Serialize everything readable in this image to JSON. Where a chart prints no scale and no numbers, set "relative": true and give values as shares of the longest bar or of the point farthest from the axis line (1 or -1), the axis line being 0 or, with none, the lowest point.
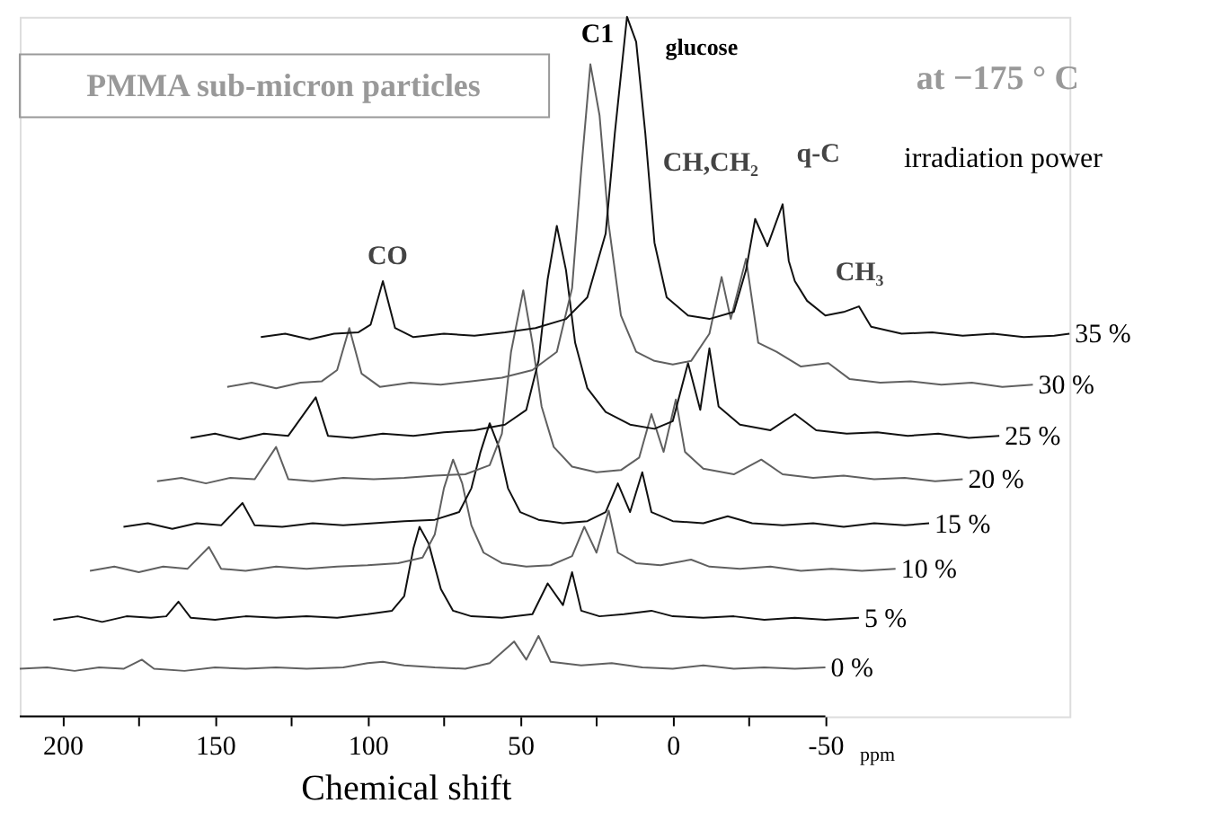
{
  "chart_data": {
    "type": "line",
    "relative": true,
    "title": "PMMA sub-micron particles",
    "xlabel": "Chemical shift",
    "xlim": [
      214,
      -130
    ],
    "xticks": [
      200,
      {
        "value": 175,
        "label": null
      },
      150,
      {
        "value": 125,
        "label": null
      },
      100,
      {
        "value": 75,
        "label": null
      },
      50,
      {
        "value": 25,
        "label": null
      },
      0,
      {
        "value": -25,
        "label": null
      },
      -50
    ],
    "legend": false,
    "grid": false,
    "line_style": "solid",
    "annotations": [
      "CO",
      "C1",
      "glucose",
      "CH,CH₂",
      "q-C",
      "CH₃",
      "at −175 ° C",
      "irradiation power",
      "ppm"
    ],
    "series": [
      {
        "name": "0 %",
        "color": "#606060",
        "x": [
          214,
          205,
          196,
          188,
          180,
          174,
          170,
          160,
          150,
          140,
          130,
          120,
          108,
          100,
          95,
          88,
          78,
          68,
          60,
          52,
          48,
          44,
          40,
          30,
          20,
          10,
          0,
          -10,
          -20,
          -30,
          -40,
          -50
        ],
        "values": [
          0.068,
          0.07,
          0.065,
          0.07,
          0.068,
          0.081,
          0.068,
          0.065,
          0.07,
          0.068,
          0.07,
          0.068,
          0.07,
          0.076,
          0.078,
          0.073,
          0.07,
          0.068,
          0.076,
          0.107,
          0.081,
          0.115,
          0.078,
          0.073,
          0.076,
          0.07,
          0.068,
          0.073,
          0.068,
          0.07,
          0.068,
          0.07
        ]
      },
      {
        "name": "5 %",
        "color": "#111111",
        "x": [
          203,
          195,
          187,
          179,
          171,
          166,
          162,
          158,
          150,
          140,
          130,
          120,
          110,
          100,
          92,
          88,
          85,
          83,
          80,
          76,
          72,
          66,
          56,
          46,
          41,
          36,
          33,
          30,
          24,
          16,
          7,
          0,
          -10,
          -20,
          -30,
          -40,
          -50,
          -61
        ],
        "values": [
          0.138,
          0.143,
          0.135,
          0.143,
          0.141,
          0.143,
          0.164,
          0.141,
          0.138,
          0.143,
          0.141,
          0.143,
          0.141,
          0.146,
          0.151,
          0.172,
          0.24,
          0.271,
          0.247,
          0.182,
          0.151,
          0.143,
          0.141,
          0.146,
          0.19,
          0.159,
          0.206,
          0.151,
          0.143,
          0.146,
          0.151,
          0.143,
          0.141,
          0.143,
          0.138,
          0.141,
          0.138,
          0.141
        ]
      },
      {
        "name": "10 %",
        "color": "#606060",
        "x": [
          191,
          183,
          175,
          167,
          159,
          152,
          148,
          140,
          130,
          120,
          110,
          100,
          90,
          82,
          78,
          75,
          72,
          69,
          66,
          62,
          56,
          48,
          40,
          33,
          29,
          25,
          21,
          18,
          12,
          4,
          -6,
          -12,
          -22,
          -32,
          -42,
          -52,
          -62,
          -73
        ],
        "values": [
          0.208,
          0.214,
          0.206,
          0.214,
          0.211,
          0.242,
          0.211,
          0.208,
          0.214,
          0.211,
          0.214,
          0.216,
          0.219,
          0.227,
          0.26,
          0.326,
          0.367,
          0.333,
          0.273,
          0.234,
          0.219,
          0.214,
          0.216,
          0.229,
          0.271,
          0.234,
          0.294,
          0.234,
          0.219,
          0.216,
          0.224,
          0.214,
          0.211,
          0.214,
          0.208,
          0.211,
          0.208,
          0.211
        ]
      },
      {
        "name": "15 %",
        "color": "#111111",
        "x": [
          180,
          172,
          164,
          156,
          148,
          141,
          137,
          128,
          118,
          108,
          98,
          88,
          78,
          70,
          66,
          63,
          60,
          57,
          54,
          50,
          44,
          36,
          28,
          22,
          18,
          14,
          10,
          7,
          0,
          -10,
          -18,
          -26,
          -36,
          -46,
          -56,
          -66,
          -76,
          -84
        ],
        "values": [
          0.271,
          0.276,
          0.268,
          0.276,
          0.273,
          0.305,
          0.273,
          0.271,
          0.276,
          0.273,
          0.276,
          0.279,
          0.281,
          0.292,
          0.326,
          0.378,
          0.419,
          0.385,
          0.326,
          0.292,
          0.281,
          0.276,
          0.279,
          0.292,
          0.333,
          0.292,
          0.349,
          0.292,
          0.279,
          0.276,
          0.286,
          0.276,
          0.273,
          0.276,
          0.271,
          0.276,
          0.273,
          0.276
        ]
      },
      {
        "name": "20 %",
        "color": "#606060",
        "x": [
          169,
          161,
          153,
          145,
          137,
          130,
          126,
          118,
          108,
          98,
          88,
          78,
          68,
          60,
          56,
          53,
          49,
          46,
          43,
          39,
          33,
          25,
          17,
          11,
          7,
          3,
          -1,
          -4,
          -10,
          -20,
          -29,
          -36,
          -46,
          -56,
          -66,
          -76,
          -86,
          -95
        ],
        "values": [
          0.336,
          0.341,
          0.333,
          0.341,
          0.339,
          0.385,
          0.339,
          0.336,
          0.341,
          0.339,
          0.341,
          0.344,
          0.346,
          0.359,
          0.404,
          0.521,
          0.609,
          0.534,
          0.443,
          0.385,
          0.357,
          0.349,
          0.352,
          0.37,
          0.432,
          0.378,
          0.453,
          0.378,
          0.354,
          0.346,
          0.367,
          0.346,
          0.341,
          0.344,
          0.339,
          0.341,
          0.336,
          0.339
        ]
      },
      {
        "name": "25 %",
        "color": "#111111",
        "x": [
          158,
          150,
          142,
          134,
          126,
          117,
          113,
          105,
          95,
          85,
          75,
          65,
          55,
          48,
          44,
          41,
          38,
          35,
          32,
          28,
          22,
          14,
          6,
          0,
          -5,
          -9,
          -12,
          -15,
          -22,
          -32,
          -40,
          -47,
          -57,
          -67,
          -77,
          -87,
          -97,
          -107
        ],
        "values": [
          0.398,
          0.404,
          0.396,
          0.404,
          0.401,
          0.456,
          0.401,
          0.398,
          0.404,
          0.401,
          0.406,
          0.409,
          0.417,
          0.438,
          0.508,
          0.625,
          0.701,
          0.638,
          0.534,
          0.469,
          0.435,
          0.417,
          0.411,
          0.422,
          0.505,
          0.438,
          0.526,
          0.443,
          0.417,
          0.409,
          0.432,
          0.409,
          0.404,
          0.406,
          0.401,
          0.404,
          0.398,
          0.401
        ]
      },
      {
        "name": "30 %",
        "color": "#606060",
        "x": [
          146,
          138,
          130,
          122,
          115,
          110,
          106,
          102,
          96,
          86,
          76,
          66,
          56,
          46,
          38,
          33,
          30,
          27,
          24,
          21,
          17,
          12,
          6,
          0,
          -6,
          -12,
          -16,
          -19,
          -24,
          -28,
          -34,
          -42,
          -51,
          -58,
          -68,
          -78,
          -88,
          -98,
          -108,
          -118
        ],
        "values": [
          0.471,
          0.477,
          0.469,
          0.477,
          0.479,
          0.495,
          0.555,
          0.49,
          0.471,
          0.477,
          0.474,
          0.479,
          0.484,
          0.495,
          0.521,
          0.612,
          0.781,
          0.932,
          0.859,
          0.703,
          0.573,
          0.521,
          0.508,
          0.503,
          0.508,
          0.547,
          0.628,
          0.568,
          0.654,
          0.534,
          0.521,
          0.5,
          0.505,
          0.482,
          0.477,
          0.479,
          0.474,
          0.477,
          0.471,
          0.474
        ]
      },
      {
        "name": "35 %",
        "color": "#111111",
        "x": [
          135,
          127,
          119,
          111,
          103,
          99,
          95,
          91,
          85,
          75,
          65,
          55,
          45,
          35,
          28,
          22,
          19,
          15,
          12,
          9,
          6,
          2,
          -5,
          -12,
          -20,
          -24,
          -27,
          -31,
          -36,
          -38,
          -40,
          -44,
          -50,
          -56,
          -61,
          -65,
          -75,
          -85,
          -95,
          -105,
          -115,
          -125,
          -130
        ],
        "values": [
          0.542,
          0.547,
          0.539,
          0.547,
          0.549,
          0.56,
          0.622,
          0.555,
          0.542,
          0.547,
          0.544,
          0.549,
          0.555,
          0.568,
          0.599,
          0.69,
          0.833,
          1,
          0.964,
          0.833,
          0.677,
          0.599,
          0.573,
          0.568,
          0.578,
          0.638,
          0.711,
          0.672,
          0.732,
          0.651,
          0.622,
          0.594,
          0.573,
          0.578,
          0.586,
          0.557,
          0.547,
          0.549,
          0.544,
          0.547,
          0.542,
          0.544,
          0.547
        ]
      }
    ]
  }
}
